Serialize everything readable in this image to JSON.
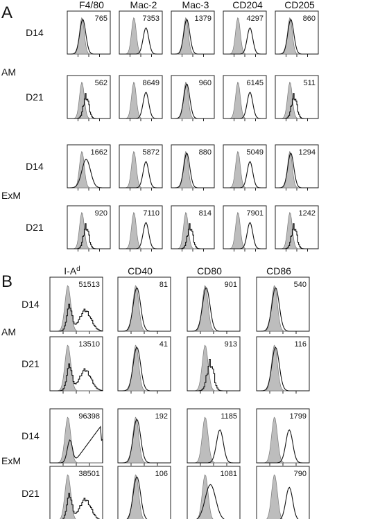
{
  "panel_A": {
    "letter": "A",
    "columns": [
      "F4/80",
      "Mac-2",
      "Mac-3",
      "CD204",
      "CD205"
    ],
    "groups": [
      "AM",
      "ExM"
    ],
    "rows": [
      {
        "group": "AM",
        "day": "D14",
        "values": [
          "765",
          "7353",
          "1379",
          "4297",
          "860"
        ],
        "shape": [
          "overlap",
          "shift",
          "overlap",
          "shift",
          "overlap"
        ]
      },
      {
        "group": "AM",
        "day": "D21",
        "values": [
          "562",
          "8649",
          "960",
          "6145",
          "511"
        ],
        "shape": [
          "jagged",
          "shift",
          "overlap",
          "shift",
          "jagged"
        ]
      },
      {
        "group": "ExM",
        "day": "D14",
        "values": [
          "1662",
          "5872",
          "880",
          "5049",
          "1294"
        ],
        "shape": [
          "broad",
          "shift",
          "overlap",
          "shift",
          "overlap"
        ]
      },
      {
        "group": "ExM",
        "day": "D21",
        "values": [
          "920",
          "7110",
          "814",
          "7901",
          "1242"
        ],
        "shape": [
          "jagged",
          "shift",
          "jagged",
          "shift",
          "jagged"
        ]
      }
    ]
  },
  "panel_B": {
    "letter": "B",
    "columns": [
      {
        "label": "I-A",
        "superscript": "d"
      },
      {
        "label": "CD40",
        "superscript": ""
      },
      {
        "label": "CD80",
        "superscript": ""
      },
      {
        "label": "CD86",
        "superscript": ""
      }
    ],
    "groups": [
      "AM",
      "ExM"
    ],
    "rows": [
      {
        "group": "AM",
        "day": "D14",
        "values": [
          "51513",
          "81",
          "901",
          "540"
        ],
        "shape": [
          "bimodal",
          "overlap",
          "overlap",
          "overlap"
        ]
      },
      {
        "group": "AM",
        "day": "D21",
        "values": [
          "13510",
          "41",
          "913",
          "116"
        ],
        "shape": [
          "bimodal",
          "overlap",
          "jagged",
          "overlap"
        ]
      },
      {
        "group": "ExM",
        "day": "D14",
        "values": [
          "96398",
          "192",
          "1185",
          "1799"
        ],
        "shape": [
          "rising",
          "overlap",
          "shift",
          "shift"
        ]
      },
      {
        "group": "ExM",
        "day": "D21",
        "values": [
          "38501",
          "106",
          "1081",
          "790"
        ],
        "shape": [
          "bimodal",
          "overlap",
          "broad",
          "shift"
        ]
      }
    ]
  }
}
